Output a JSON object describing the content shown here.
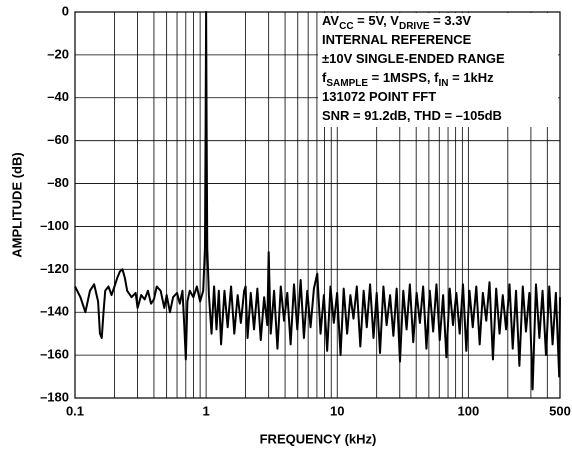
{
  "chart_data": {
    "type": "line",
    "xlabel": "FREQUENCY (kHz)",
    "ylabel": "AMPLITUDE (dB)",
    "xscale": "log",
    "xlim": [
      0.1,
      500
    ],
    "ylim": [
      -180,
      0
    ],
    "xticks": [
      0.1,
      1,
      10,
      100,
      500
    ],
    "xminor": [
      0.2,
      0.3,
      0.4,
      0.5,
      0.6,
      0.7,
      0.8,
      0.9,
      2,
      3,
      4,
      5,
      6,
      7,
      8,
      9,
      20,
      30,
      40,
      50,
      60,
      70,
      80,
      90,
      200,
      300,
      400
    ],
    "yticks": [
      0,
      {
        "value": -20,
        "label": "–20"
      },
      {
        "value": -40,
        "label": "–40"
      },
      {
        "value": -60,
        "label": "–60"
      },
      {
        "value": -80,
        "label": "–80"
      },
      {
        "value": -100,
        "label": "–100"
      },
      {
        "value": -120,
        "label": "–120"
      },
      {
        "value": -140,
        "label": "–140"
      },
      {
        "value": -160,
        "label": "–160"
      },
      {
        "value": -180,
        "label": "–180"
      }
    ],
    "grid": true,
    "color": "#000000",
    "annotation": [
      [
        {
          "t": "AV"
        },
        {
          "t": "CC",
          "sub": true
        },
        {
          "t": " = 5V, V"
        },
        {
          "t": "DRIVE",
          "sub": true
        },
        {
          "t": " = 3.3V"
        }
      ],
      [
        {
          "t": "INTERNAL REFERENCE"
        }
      ],
      [
        {
          "t": "±10V SINGLE-ENDED RANGE"
        }
      ],
      [
        {
          "t": "f"
        },
        {
          "t": "SAMPLE",
          "sub": true
        },
        {
          "t": " = 1MSPS, f"
        },
        {
          "t": "IN",
          "sub": true
        },
        {
          "t": " = 1kHz"
        }
      ],
      [
        {
          "t": "131072 POINT FFT"
        }
      ],
      [
        {
          "t": "SNR = 91.2dB, THD = –105dB"
        }
      ]
    ],
    "x": [
      0.1,
      0.11,
      0.12,
      0.13,
      0.14,
      0.15,
      0.155,
      0.16,
      0.165,
      0.17,
      0.18,
      0.19,
      0.2,
      0.21,
      0.22,
      0.23,
      0.24,
      0.25,
      0.27,
      0.29,
      0.3,
      0.32,
      0.34,
      0.36,
      0.38,
      0.4,
      0.42,
      0.45,
      0.48,
      0.5,
      0.53,
      0.56,
      0.6,
      0.63,
      0.66,
      0.68,
      0.7,
      0.72,
      0.75,
      0.8,
      0.85,
      0.9,
      0.95,
      0.98,
      0.99,
      1,
      1.01,
      1.02,
      1.05,
      1.1,
      1.15,
      1.2,
      1.25,
      1.3,
      1.38,
      1.46,
      1.55,
      1.64,
      1.74,
      1.84,
      1.95,
      2,
      2.07,
      2.19,
      2.32,
      2.46,
      2.61,
      2.77,
      2.93,
      3,
      3.11,
      3.3,
      3.5,
      3.71,
      3.93,
      4.16,
      4.41,
      4.68,
      4.96,
      5.26,
      5.57,
      5.91,
      6.26,
      6.64,
      7.04,
      7.46,
      7.91,
      8.38,
      8.88,
      9.42,
      9.98,
      10.6,
      11.2,
      11.9,
      12.6,
      13.3,
      14.1,
      15,
      15.9,
      16.8,
      17.8,
      18.9,
      20,
      21.2,
      22.5,
      23.8,
      25.3,
      26.8,
      28.4,
      30.1,
      31.9,
      33.8,
      35.8,
      38,
      40.3,
      42.7,
      45.2,
      47.9,
      50.8,
      53.9,
      57.1,
      60.5,
      64.2,
      68,
      72.1,
      76.4,
      81,
      85.9,
      91,
      96.5,
      102,
      108,
      115,
      122,
      129,
      137,
      145,
      154,
      163,
      173,
      183,
      194,
      206,
      218,
      231,
      245,
      260,
      275,
      292,
      309,
      328,
      348,
      368,
      391,
      414,
      439,
      465,
      493,
      500
    ],
    "values": [
      -128,
      -133,
      -140,
      -130,
      -127,
      -135,
      -150,
      -152,
      -140,
      -130,
      -128,
      -132,
      -128,
      -124,
      -121,
      -120,
      -124,
      -130,
      -133,
      -131,
      -138,
      -132,
      -134,
      -130,
      -136,
      -134,
      -128,
      -130,
      -138,
      -132,
      -140,
      -133,
      -131,
      -136,
      -130,
      -145,
      -162,
      -135,
      -130,
      -133,
      -128,
      -135,
      -130,
      -110,
      -60,
      0,
      -60,
      -110,
      -132,
      -150,
      -128,
      -148,
      -130,
      -155,
      -130,
      -147,
      -128,
      -150,
      -132,
      -145,
      -130,
      -128,
      -152,
      -131,
      -148,
      -129,
      -153,
      -133,
      -146,
      -112,
      -150,
      -130,
      -157,
      -128,
      -144,
      -131,
      -155,
      -127,
      -148,
      -125,
      -152,
      -130,
      -147,
      -129,
      -122,
      -150,
      -132,
      -158,
      -128,
      -145,
      -131,
      -160,
      -129,
      -150,
      -132,
      -143,
      -128,
      -156,
      -130,
      -147,
      -127,
      -152,
      -131,
      -159,
      -128,
      -146,
      -132,
      -151,
      -129,
      -163,
      -130,
      -148,
      -127,
      -154,
      -131,
      -145,
      -128,
      -157,
      -130,
      -149,
      -127,
      -153,
      -132,
      -161,
      -129,
      -146,
      -131,
      -150,
      -127,
      -158,
      -130,
      -147,
      -128,
      -155,
      -131,
      -144,
      -126,
      -162,
      -129,
      -150,
      -132,
      -148,
      -127,
      -157,
      -130,
      -165,
      -128,
      -149,
      -131,
      -176,
      -127,
      -152,
      -130,
      -160,
      -128,
      -155,
      -131,
      -170,
      -133
    ]
  }
}
